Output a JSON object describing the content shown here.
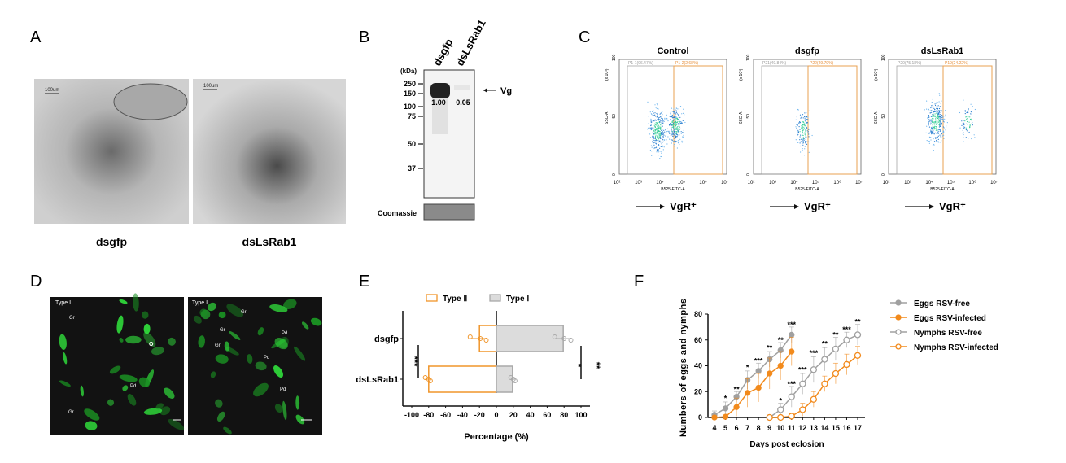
{
  "panels": {
    "A": {
      "label": "A",
      "scale_bar": "100um",
      "captions": [
        "dsgfp",
        "dsLsRab1"
      ]
    },
    "B": {
      "label": "B",
      "unit": "(kDa)",
      "lanes": [
        "dsgfp",
        "dsLsRab1"
      ],
      "markers": [
        "250",
        "150",
        "100",
        "75",
        "50",
        "37"
      ],
      "band_values": [
        "1.00",
        "0.05"
      ],
      "band_label": "Vg",
      "loading_control": "Coomassie"
    },
    "C": {
      "label": "C",
      "plots": [
        {
          "title": "Control",
          "gate_left": "P1-1(96.47%)",
          "gate_right": "P1-2(2.68%)"
        },
        {
          "title": "dsgfp",
          "gate_left": "P21(49.84%)",
          "gate_right": "P22(49.79%)"
        },
        {
          "title": "dsLsRab1",
          "gate_left": "P20(75.18%)",
          "gate_right": "P19(24.22%)"
        }
      ],
      "y_axis_label": "SSC-A",
      "y_axis_unit": "(x 10³)",
      "y_ticks": [
        "0",
        "50",
        "100"
      ],
      "x_axis_label": "B525-FITC-A",
      "x_ticks": [
        "10²",
        "10³",
        "10⁴",
        "10⁵",
        "10⁶",
        "10⁷"
      ],
      "arrow_label": "VgR⁺"
    },
    "D": {
      "label": "D",
      "images": [
        {
          "title": "Type Ⅰ",
          "annotations": [
            "Gr",
            "O",
            "Pd",
            "Gr"
          ]
        },
        {
          "title": "Type Ⅱ",
          "annotations": [
            "Gr",
            "Gr",
            "Gr",
            "Pd",
            "Pd",
            "Pd"
          ]
        }
      ]
    }
  },
  "chart_data": [
    {
      "panel": "E",
      "type": "bar",
      "orientation": "horizontal",
      "categories": [
        "dsgfp",
        "dsLsRab1"
      ],
      "series": [
        {
          "name": "Type Ⅱ",
          "color": "#f0952a",
          "values": [
            -20,
            -80
          ],
          "points": [
            [
              -31,
              -19,
              -12
            ],
            [
              -84,
              -80,
              -78
            ]
          ]
        },
        {
          "name": "Type Ⅰ",
          "color": "#a9a9a9",
          "values": [
            79,
            19
          ],
          "points": [
            [
              69,
              80,
              88
            ],
            [
              17,
              20,
              22
            ]
          ]
        }
      ],
      "xlabel": "Percentage (%)",
      "xlim": [
        -100,
        100
      ],
      "xticks": [
        "-100",
        "-80",
        "-60",
        "-40",
        "-20",
        "0",
        "20",
        "40",
        "60",
        "80",
        "100"
      ],
      "significance": [
        "***",
        "*",
        "**"
      ],
      "legend": "top"
    },
    {
      "panel": "F",
      "type": "line",
      "xlabel": "Days post eclosion",
      "ylabel": "Numbers of eggs and nymphs",
      "ylim": [
        0,
        80
      ],
      "yticks": [
        "0",
        "20",
        "40",
        "60",
        "80"
      ],
      "xticks": [
        "4",
        "5",
        "6",
        "7",
        "8",
        "9",
        "10",
        "11",
        "12",
        "13",
        "14",
        "15",
        "16",
        "17"
      ],
      "legend": "right",
      "series": [
        {
          "name": "Eggs RSV-free",
          "color": "#a0a0a0",
          "filled": true,
          "x": [
            4,
            5,
            6,
            7,
            8,
            9,
            10,
            11
          ],
          "y": [
            2,
            7,
            16,
            29,
            36,
            45,
            52,
            64
          ],
          "err": [
            3,
            5,
            4,
            7,
            6,
            6,
            6,
            6
          ]
        },
        {
          "name": "Eggs RSV-infected",
          "color": "#f28a1c",
          "filled": true,
          "x": [
            4,
            5,
            6,
            7,
            8,
            9,
            10,
            11
          ],
          "y": [
            0,
            0.5,
            8,
            19,
            23,
            34,
            40,
            51
          ],
          "err": [
            1,
            1,
            7,
            11,
            11,
            12,
            11,
            11
          ]
        },
        {
          "name": "Nymphs RSV-free",
          "color": "#a0a0a0",
          "filled": false,
          "x": [
            9,
            10,
            11,
            12,
            13,
            14,
            15,
            16,
            17
          ],
          "y": [
            0,
            6,
            16,
            26,
            37,
            45,
            53,
            60,
            64
          ],
          "err": [
            0,
            5,
            8,
            8,
            10,
            9,
            9,
            6,
            8
          ]
        },
        {
          "name": "Nymphs RSV-infected",
          "color": "#f28a1c",
          "filled": false,
          "x": [
            9,
            10,
            11,
            12,
            13,
            14,
            15,
            16,
            17
          ],
          "y": [
            0,
            0,
            1,
            6,
            14,
            26,
            34,
            41,
            48
          ],
          "err": [
            0,
            0,
            2,
            5,
            6,
            6,
            8,
            8,
            7
          ]
        }
      ],
      "significance": [
        {
          "x": 5,
          "y": 13,
          "mark": "*"
        },
        {
          "x": 6,
          "y": 20,
          "mark": "**"
        },
        {
          "x": 7,
          "y": 37,
          "mark": "*"
        },
        {
          "x": 8,
          "y": 42,
          "mark": "***"
        },
        {
          "x": 9,
          "y": 52,
          "mark": "**"
        },
        {
          "x": 10,
          "y": 58,
          "mark": "**"
        },
        {
          "x": 11,
          "y": 70,
          "mark": "***"
        },
        {
          "x": 10,
          "y": 11,
          "mark": "*"
        },
        {
          "x": 11,
          "y": 24,
          "mark": "***"
        },
        {
          "x": 12,
          "y": 35,
          "mark": "***"
        },
        {
          "x": 13,
          "y": 48,
          "mark": "***"
        },
        {
          "x": 14,
          "y": 55,
          "mark": "**"
        },
        {
          "x": 15,
          "y": 62,
          "mark": "**"
        },
        {
          "x": 16,
          "y": 66,
          "mark": "***"
        },
        {
          "x": 17,
          "y": 72,
          "mark": "**"
        }
      ]
    }
  ]
}
